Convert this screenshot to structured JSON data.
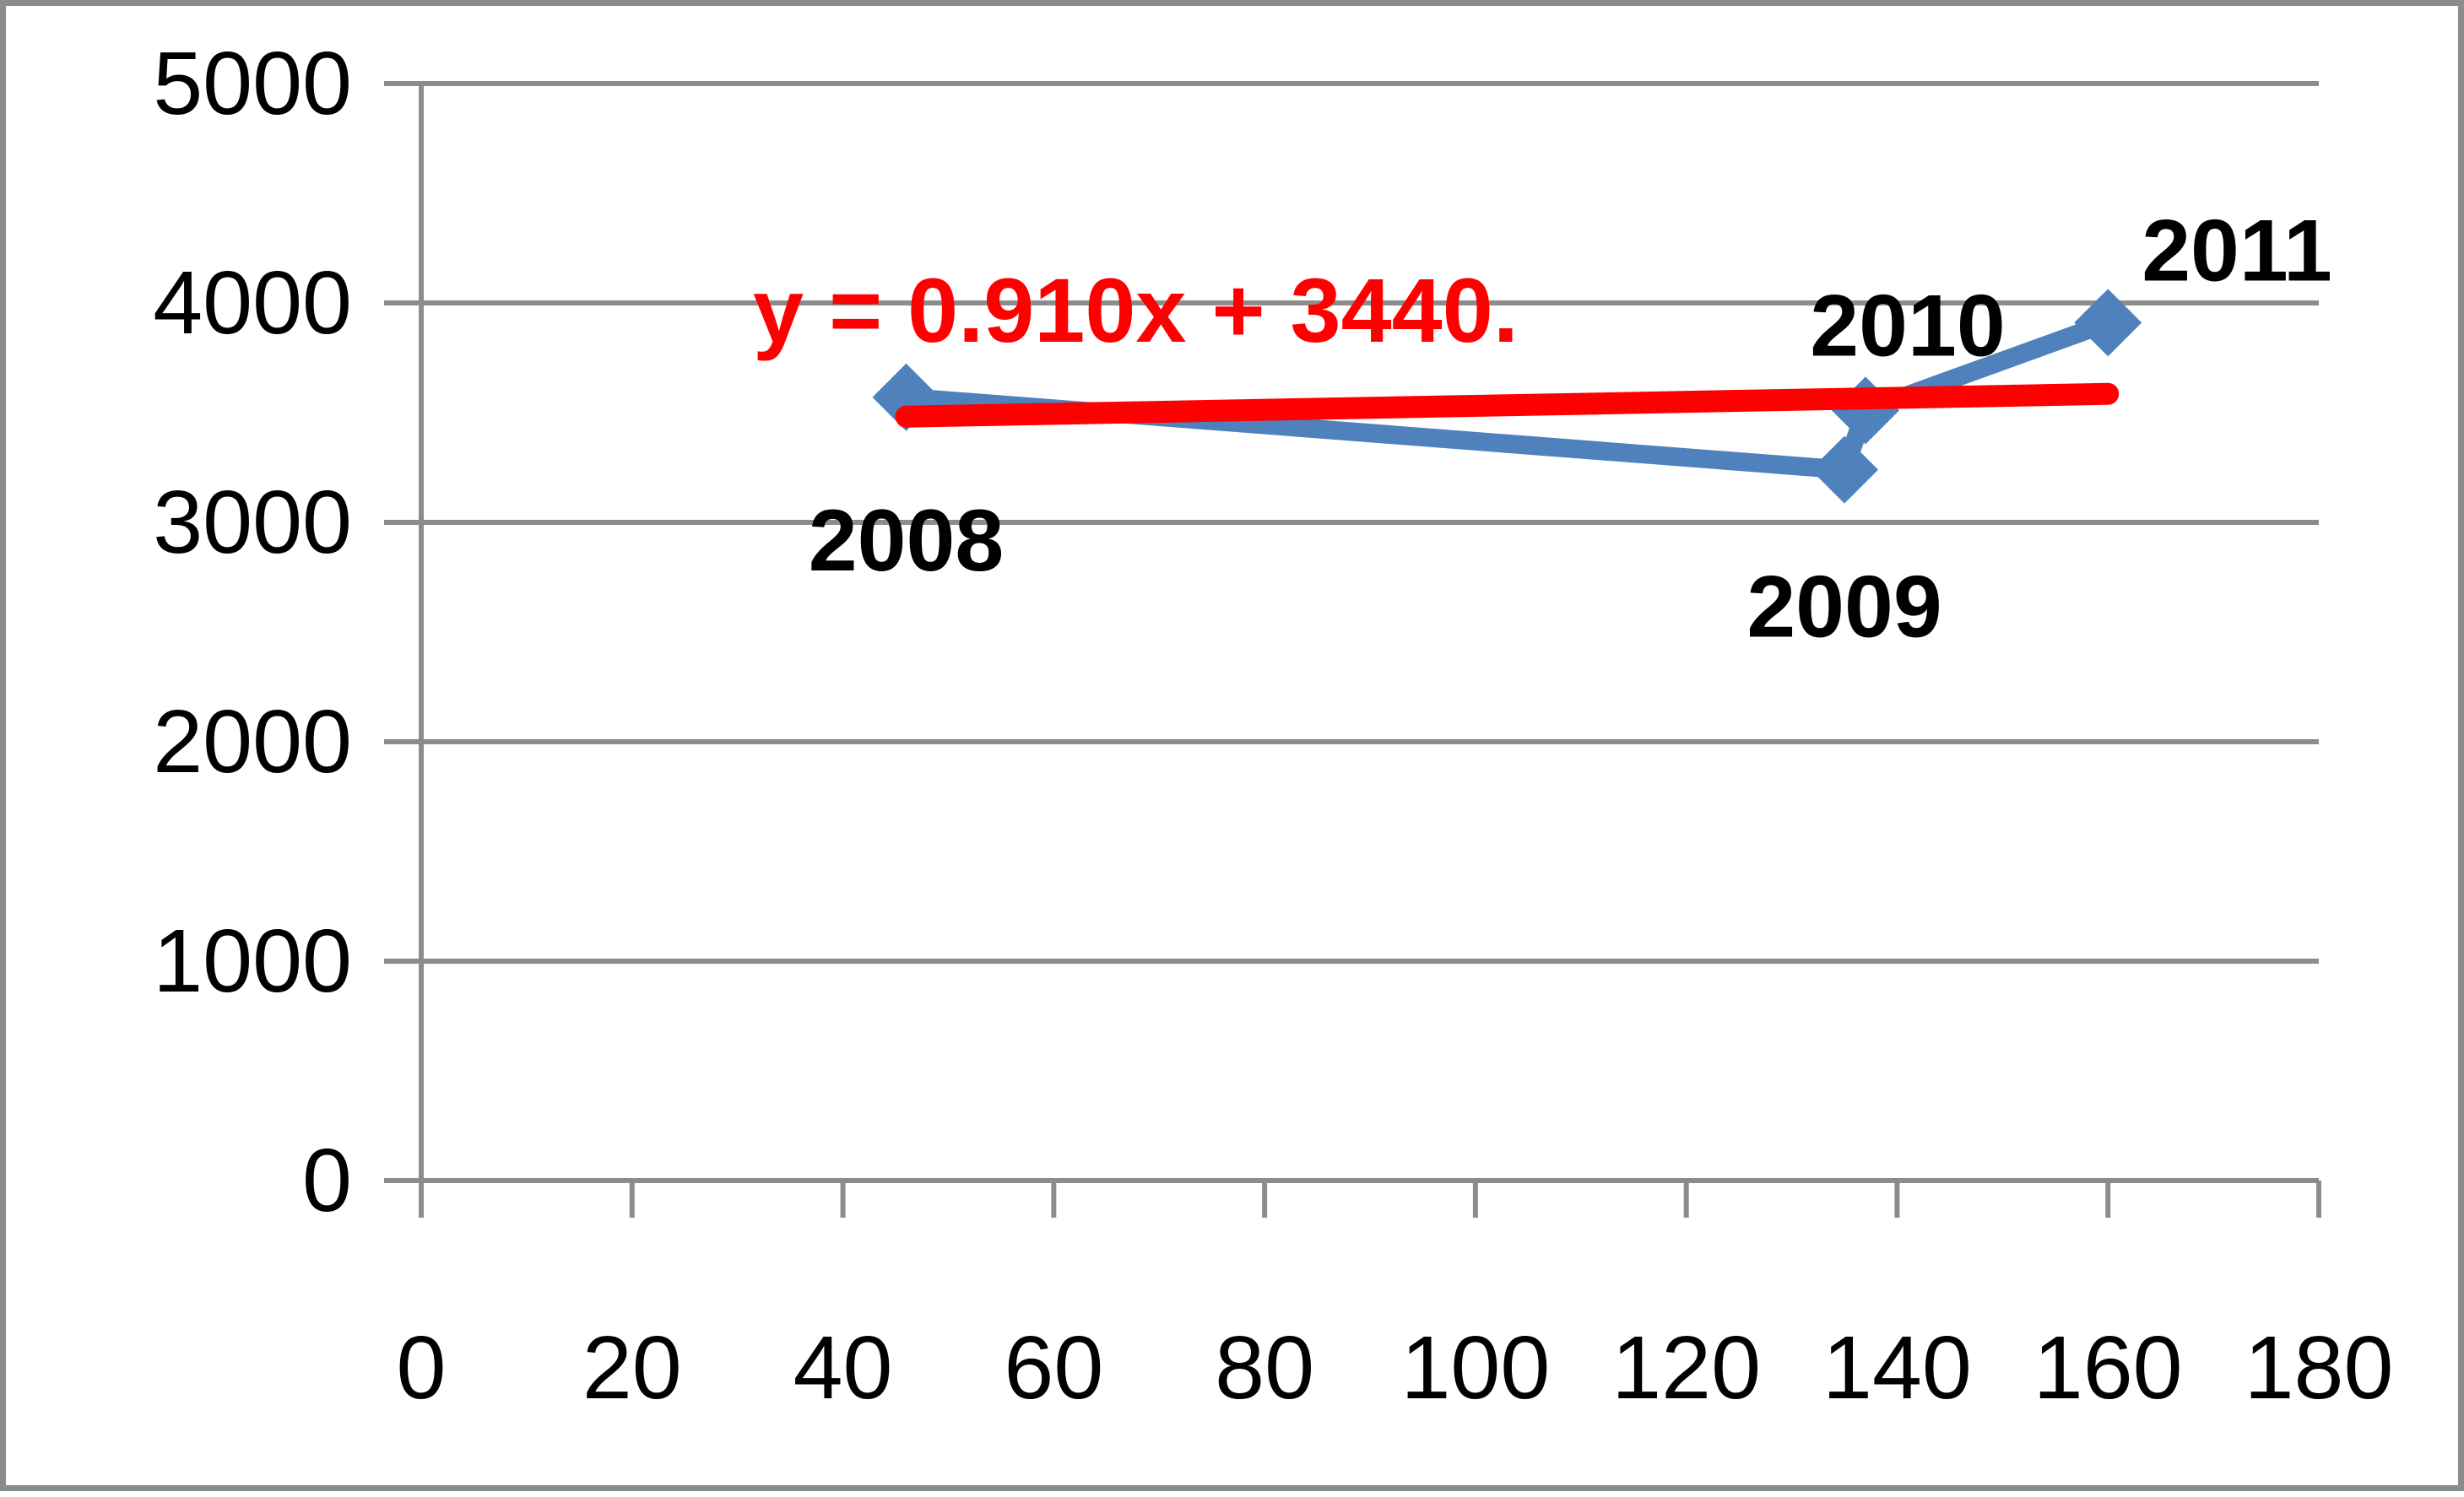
{
  "chart_data": {
    "type": "scatter",
    "title": "",
    "xlabel": "",
    "ylabel": "",
    "xlim": [
      0,
      180
    ],
    "ylim": [
      0,
      5000
    ],
    "x_ticks": [
      0,
      20,
      40,
      60,
      80,
      100,
      120,
      140,
      160,
      180
    ],
    "y_ticks": [
      0,
      1000,
      2000,
      3000,
      4000,
      5000
    ],
    "x_tick_labels": [
      "0",
      "20",
      "40",
      "60",
      "80",
      "100",
      "120",
      "140",
      "160",
      "180"
    ],
    "y_tick_labels": [
      "0",
      "1000",
      "2000",
      "3000",
      "4000",
      "5000"
    ],
    "grid": {
      "horizontal": true,
      "vertical": false
    },
    "legend": "none",
    "series": [
      {
        "x": [
          46,
          135,
          137,
          160
        ],
        "y": [
          3570,
          3240,
          3510,
          3910
        ],
        "point_labels": [
          "2008",
          "2009",
          "2010",
          "2011"
        ],
        "color": "#4F81BD",
        "marker": "diamond",
        "connected": true
      }
    ],
    "trendline": {
      "type": "linear",
      "equation": "y = 0.910x + 3440.",
      "slope": 0.91,
      "intercept": 3440,
      "x_range": [
        46,
        160
      ],
      "color": "#FF0000"
    },
    "colors": {
      "axis": "#8C8C8C",
      "gridline": "#8C8C8C",
      "series": "#4F81BD",
      "trendline": "#FF0000",
      "frame": "#8C8C8C"
    }
  }
}
